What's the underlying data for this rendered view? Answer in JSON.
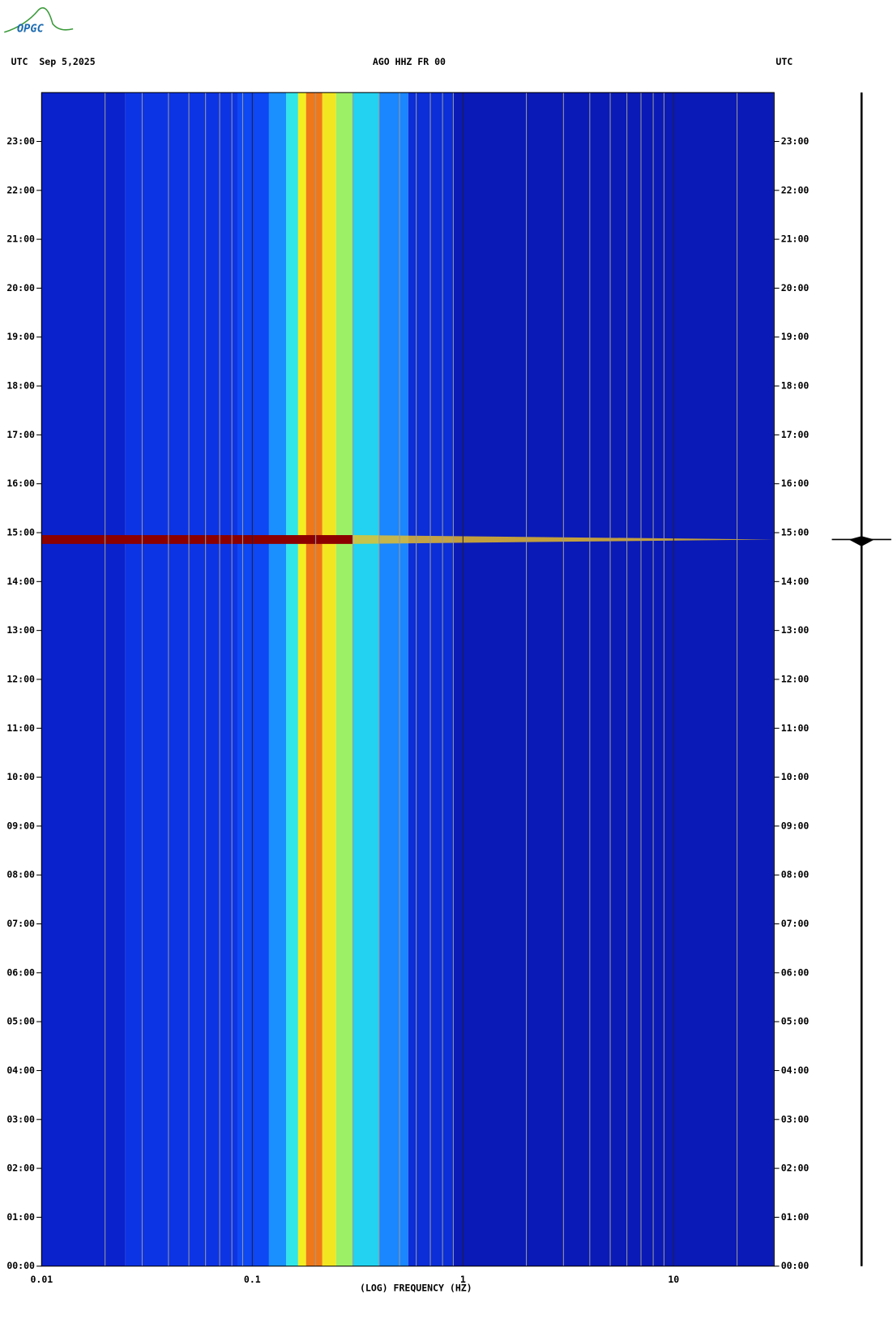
{
  "logo": "OPGC",
  "chart_data": {
    "type": "spectrogram",
    "header_left": "UTC  Sep 5,2025",
    "title": "AGO HHZ FR 00",
    "header_right": "UTC",
    "x_label": "(LOG) FREQUENCY (HZ)",
    "xlim": [
      0.01,
      30
    ],
    "xticks": [
      0.01,
      0.1,
      1,
      10
    ],
    "log_x": true,
    "grid": true,
    "ylim": [
      0,
      24
    ],
    "yticks": [
      {
        "value": 0,
        "label": "00:00"
      },
      {
        "value": 1,
        "label": "01:00"
      },
      {
        "value": 2,
        "label": "02:00"
      },
      {
        "value": 3,
        "label": "03:00"
      },
      {
        "value": 4,
        "label": "04:00"
      },
      {
        "value": 5,
        "label": "05:00"
      },
      {
        "value": 6,
        "label": "06:00"
      },
      {
        "value": 7,
        "label": "07:00"
      },
      {
        "value": 8,
        "label": "08:00"
      },
      {
        "value": 9,
        "label": "09:00"
      },
      {
        "value": 10,
        "label": "10:00"
      },
      {
        "value": 11,
        "label": "11:00"
      },
      {
        "value": 12,
        "label": "12:00"
      },
      {
        "value": 13,
        "label": "13:00"
      },
      {
        "value": 14,
        "label": "14:00"
      },
      {
        "value": 15,
        "label": "15:00"
      },
      {
        "value": 16,
        "label": "16:00"
      },
      {
        "value": 17,
        "label": "17:00"
      },
      {
        "value": 18,
        "label": "18:00"
      },
      {
        "value": 19,
        "label": "19:00"
      },
      {
        "value": 20,
        "label": "20:00"
      },
      {
        "value": 21,
        "label": "21:00"
      },
      {
        "value": 22,
        "label": "22:00"
      },
      {
        "value": 23,
        "label": "23:00"
      }
    ],
    "bands": [
      {
        "from": 0.01,
        "to": 0.025,
        "color": "#0a22cc"
      },
      {
        "from": 0.025,
        "to": 0.085,
        "color": "#0d34e4"
      },
      {
        "from": 0.085,
        "to": 0.12,
        "color": "#0e48f4"
      },
      {
        "from": 0.12,
        "to": 0.145,
        "color": "#1a90ff"
      },
      {
        "from": 0.145,
        "to": 0.165,
        "color": "#30e6e8"
      },
      {
        "from": 0.165,
        "to": 0.18,
        "color": "#f2ee20"
      },
      {
        "from": 0.18,
        "to": 0.215,
        "color": "#f07818"
      },
      {
        "from": 0.215,
        "to": 0.25,
        "color": "#f2e620"
      },
      {
        "from": 0.25,
        "to": 0.3,
        "color": "#9cf066"
      },
      {
        "from": 0.3,
        "to": 0.4,
        "color": "#22d2f0"
      },
      {
        "from": 0.4,
        "to": 0.55,
        "color": "#1a86ff"
      },
      {
        "from": 0.55,
        "to": 0.9,
        "color": "#0b2ed8"
      },
      {
        "from": 0.9,
        "to": 30,
        "color": "#0a1ab6"
      }
    ],
    "event": {
      "start": 14.77,
      "end": 14.95,
      "fmax": 0.3,
      "color": "#8c0000"
    }
  }
}
